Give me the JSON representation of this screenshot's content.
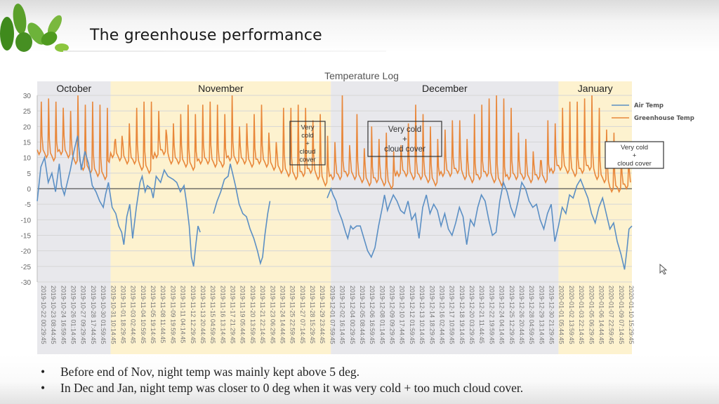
{
  "slide": {
    "title": "The greenhouse performance",
    "bullets": [
      "Before end of Nov, night temp was mainly kept above 5 deg.",
      "In Dec and Jan, night temp was closer to 0 deg when it was very cold + too much cloud cover."
    ],
    "bullet_glyph": "•",
    "colors": {
      "leaf": "#4f9a1f",
      "leaf_light": "#8cc63f"
    }
  },
  "chart_data": {
    "type": "line",
    "title": "Temperature Log",
    "xlabel": "",
    "ylabel": "",
    "ylim": [
      -30,
      30
    ],
    "yticks": [
      30,
      25,
      20,
      15,
      10,
      5,
      0,
      -5,
      -10,
      -15,
      -20,
      -25,
      -30
    ],
    "grid": true,
    "legend": "top-right",
    "x_range_days": [
      0,
      81
    ],
    "month_bands": [
      {
        "label": "October",
        "start_day": 0,
        "end_day": 10,
        "color": "#e8e8ec"
      },
      {
        "label": "November",
        "start_day": 10,
        "end_day": 40,
        "color": "#fdf2cf"
      },
      {
        "label": "December",
        "start_day": 40,
        "end_day": 71,
        "color": "#e8e8ec"
      },
      {
        "label": "January",
        "start_day": 71,
        "end_day": 81,
        "color": "#fdf2cf"
      }
    ],
    "xtick_labels": [
      "2019-10-22 00:29:45",
      "2019-10-23 08:44:45",
      "2019-10-24 16:59:45",
      "2019-10-26 01:14:45",
      "2019-10-27 09:29:45",
      "2019-10-28 17:44:45",
      "2019-10-30 01:59:45",
      "2019-10-31 10:14:45",
      "2019-11-01 18:29:45",
      "2019-11-03 02:44:45",
      "2019-11-04 10:59:45",
      "2019-11-05 19:14:45",
      "2019-11-08 11:44:45",
      "2019-11-09 19:59:45",
      "2019-11-11 04:14:45",
      "2019-11-12 12:29:45",
      "2019-11-13 20:44:45",
      "2019-11-15 04:59:45",
      "2019-11-16 13:14:45",
      "2019-11-17 21:29:45",
      "2019-11-19 05:44:45",
      "2019-11-20 13:59:45",
      "2019-11-21 22:14:45",
      "2019-11-23 06:29:45",
      "2019-11-24 14:44:45",
      "2019-11-25 22:59:45",
      "2019-11-27 07:14:45",
      "2019-11-28 15:29:45",
      "2019-11-29 23:44:45",
      "2019-12-01 07:59:45",
      "2019-12-02 16:14:45",
      "2019-12-04 00:29:45",
      "2019-12-05 08:44:45",
      "2019-12-06 16:59:45",
      "2019-12-08 01:14:45",
      "2019-12-09 09:29:45",
      "2019-12-10 17:44:45",
      "2019-12-12 01:59:45",
      "2019-12-13 10:14:45",
      "2019-12-14 18:29:45",
      "2019-12-16 02:44:45",
      "2019-12-17 10:59:45",
      "2019-12-18 19:14:45",
      "2019-12-20 03:29:45",
      "2019-12-21 11:44:45",
      "2019-12-22 19:59:45",
      "2019-12-24 04:14:45",
      "2019-12-25 12:29:45",
      "2019-12-26 20:44:45",
      "2019-12-28 04:59:45",
      "2019-12-29 13:14:45",
      "2019-12-30 21:29:45",
      "2020-01-01 05:44:45",
      "2020-01-02 13:59:45",
      "2020-01-03 22:14:45",
      "2020-01-05 06:29:45",
      "2020-01-06 14:44:45",
      "2020-01-07 22:59:45",
      "2020-01-09 07:14:45",
      "2020-01-10 15:29:45"
    ],
    "series": [
      {
        "name": "Air Temp",
        "color": "#5b8fc4",
        "points_day_value": [
          [
            0.0,
            -4
          ],
          [
            0.5,
            7
          ],
          [
            1.0,
            10
          ],
          [
            1.5,
            2
          ],
          [
            2.0,
            5
          ],
          [
            2.5,
            -1
          ],
          [
            3.0,
            8
          ],
          [
            3.3,
            1
          ],
          [
            3.7,
            -2
          ],
          [
            4.0,
            1
          ],
          [
            4.5,
            6
          ],
          [
            5.0,
            12
          ],
          [
            5.5,
            17
          ],
          [
            6.0,
            6
          ],
          [
            6.5,
            12
          ],
          [
            7.0,
            8
          ],
          [
            7.5,
            1
          ],
          [
            8.0,
            -1
          ],
          [
            8.5,
            -4
          ],
          [
            9.0,
            -6
          ],
          [
            9.3,
            -2
          ],
          [
            9.7,
            2
          ],
          [
            10.2,
            -6
          ],
          [
            10.7,
            -8
          ],
          [
            11.1,
            -12
          ],
          [
            11.5,
            -14
          ],
          [
            11.8,
            -18
          ],
          [
            12.2,
            -9
          ],
          [
            12.6,
            -5
          ],
          [
            13.0,
            -16
          ],
          [
            13.5,
            -6
          ],
          [
            14.0,
            2
          ],
          [
            14.3,
            4
          ],
          [
            14.7,
            -1
          ],
          [
            15.0,
            1
          ],
          [
            15.5,
            0
          ],
          [
            15.8,
            -3
          ],
          [
            16.2,
            4
          ],
          [
            16.8,
            2
          ],
          [
            17.3,
            6
          ],
          [
            17.8,
            4
          ],
          [
            18.5,
            3
          ],
          [
            19.0,
            2
          ],
          [
            19.5,
            -1
          ],
          [
            20.0,
            1
          ],
          [
            20.3,
            -4
          ],
          [
            20.7,
            -12
          ],
          [
            21.0,
            -22
          ],
          [
            21.3,
            -25
          ],
          [
            21.6,
            -18
          ],
          [
            21.9,
            -12
          ],
          [
            22.2,
            -14
          ],
          [
            24.0,
            -8
          ],
          [
            24.5,
            -4
          ],
          [
            25.0,
            -1
          ],
          [
            25.5,
            3
          ],
          [
            26.0,
            4
          ],
          [
            26.3,
            8
          ],
          [
            26.6,
            5
          ],
          [
            27.0,
            1
          ],
          [
            27.5,
            -5
          ],
          [
            28.0,
            -8
          ],
          [
            28.5,
            -9
          ],
          [
            29.0,
            -13
          ],
          [
            29.5,
            -16
          ],
          [
            30.0,
            -20
          ],
          [
            30.4,
            -24
          ],
          [
            30.7,
            -22
          ],
          [
            31.0,
            -15
          ],
          [
            31.4,
            -8
          ],
          [
            31.7,
            -4
          ],
          [
            39.5,
            -3
          ],
          [
            40.0,
            0
          ],
          [
            40.3,
            -2
          ],
          [
            40.7,
            -4
          ],
          [
            41.0,
            -7
          ],
          [
            41.5,
            -10
          ],
          [
            42.0,
            -14
          ],
          [
            42.3,
            -16
          ],
          [
            42.7,
            -12
          ],
          [
            43.0,
            -13
          ],
          [
            43.5,
            -12
          ],
          [
            44.0,
            -12
          ],
          [
            44.5,
            -16
          ],
          [
            45.0,
            -20
          ],
          [
            45.5,
            -22
          ],
          [
            46.0,
            -19
          ],
          [
            46.5,
            -12
          ],
          [
            47.0,
            -6
          ],
          [
            47.3,
            -2
          ],
          [
            47.7,
            -7
          ],
          [
            48.0,
            -5
          ],
          [
            48.5,
            -2
          ],
          [
            49.0,
            -4
          ],
          [
            49.5,
            -7
          ],
          [
            50.0,
            -8
          ],
          [
            50.5,
            -4
          ],
          [
            51.0,
            -10
          ],
          [
            51.5,
            -8
          ],
          [
            52.0,
            -16
          ],
          [
            52.5,
            -6
          ],
          [
            53.0,
            -2
          ],
          [
            53.5,
            -8
          ],
          [
            54.0,
            -5
          ],
          [
            54.5,
            -7
          ],
          [
            55.0,
            -12
          ],
          [
            55.5,
            -8
          ],
          [
            56.0,
            -13
          ],
          [
            56.5,
            -15
          ],
          [
            57.0,
            -11
          ],
          [
            57.5,
            -6
          ],
          [
            58.0,
            -9
          ],
          [
            58.5,
            -18
          ],
          [
            59.0,
            -10
          ],
          [
            59.5,
            -12
          ],
          [
            60.0,
            -6
          ],
          [
            60.5,
            -2
          ],
          [
            61.0,
            -4
          ],
          [
            61.5,
            -10
          ],
          [
            62.0,
            -15
          ],
          [
            62.5,
            -14
          ],
          [
            63.0,
            -4
          ],
          [
            63.5,
            2
          ],
          [
            64.0,
            -1
          ],
          [
            64.5,
            -6
          ],
          [
            65.0,
            -9
          ],
          [
            65.5,
            -4
          ],
          [
            66.0,
            2
          ],
          [
            66.5,
            0
          ],
          [
            67.0,
            -4
          ],
          [
            67.5,
            -6
          ],
          [
            68.0,
            -5
          ],
          [
            68.5,
            -10
          ],
          [
            69.0,
            -13
          ],
          [
            69.5,
            -8
          ],
          [
            70.0,
            -5
          ],
          [
            70.5,
            -17
          ],
          [
            71.0,
            -12
          ],
          [
            71.5,
            -6
          ],
          [
            72.0,
            -8
          ],
          [
            72.5,
            -2
          ],
          [
            73.0,
            -3
          ],
          [
            73.5,
            1
          ],
          [
            74.0,
            3
          ],
          [
            74.5,
            0
          ],
          [
            75.0,
            -3
          ],
          [
            75.5,
            -8
          ],
          [
            76.0,
            -11
          ],
          [
            76.5,
            -6
          ],
          [
            77.0,
            -3
          ],
          [
            77.5,
            -8
          ],
          [
            78.0,
            -13
          ],
          [
            78.5,
            -11
          ],
          [
            79.0,
            -17
          ],
          [
            79.5,
            -21
          ],
          [
            80.0,
            -26
          ],
          [
            80.3,
            -20
          ],
          [
            80.6,
            -13
          ],
          [
            81.0,
            -12
          ]
        ]
      },
      {
        "name": "Greenhouse Temp",
        "color": "#e8873a",
        "night_lows": [
          11,
          10,
          9,
          11,
          10,
          8,
          6,
          5,
          4,
          3,
          10,
          9,
          8,
          8,
          6,
          5,
          10,
          11,
          8,
          8,
          7,
          6,
          8,
          8,
          7,
          7,
          9,
          8,
          8,
          7,
          8,
          7,
          6,
          5,
          4,
          3,
          4,
          5,
          3,
          1,
          3,
          3,
          4,
          3,
          2,
          1,
          2,
          1,
          0,
          4,
          4,
          3,
          3,
          2,
          1,
          4,
          4,
          5,
          3,
          2,
          3,
          4,
          2,
          1,
          3,
          3,
          3,
          2,
          3,
          2,
          5,
          6,
          5,
          4,
          5,
          6,
          3,
          2,
          -1,
          -1,
          0
        ],
        "day_peaks": [
          28,
          29,
          28,
          26,
          25,
          30,
          27,
          28,
          27,
          26,
          15,
          17,
          21,
          26,
          28,
          28,
          25,
          19,
          21,
          24,
          27,
          24,
          27,
          28,
          27,
          24,
          30,
          20,
          21,
          24,
          27,
          18,
          15,
          26,
          26,
          27,
          26,
          22,
          24,
          17,
          15,
          30,
          14,
          24,
          13,
          20,
          16,
          18,
          12,
          14,
          21,
          27,
          24,
          20,
          16,
          19,
          22,
          22,
          16,
          24,
          27,
          29,
          30,
          29,
          26,
          18,
          16,
          12,
          9,
          22,
          21,
          26,
          28,
          28,
          29,
          30,
          26,
          19,
          18,
          10,
          9
        ],
        "peak_unit": "degC"
      }
    ],
    "annotations": [
      {
        "text_lines": [
          "Very",
          "cold",
          "+",
          "cloud",
          "cover"
        ]
      },
      {
        "text_lines": [
          "Very cold",
          "+",
          "cloud cover"
        ]
      },
      {
        "text_lines": [
          "Very cold",
          "+",
          "cloud cover"
        ]
      }
    ]
  }
}
